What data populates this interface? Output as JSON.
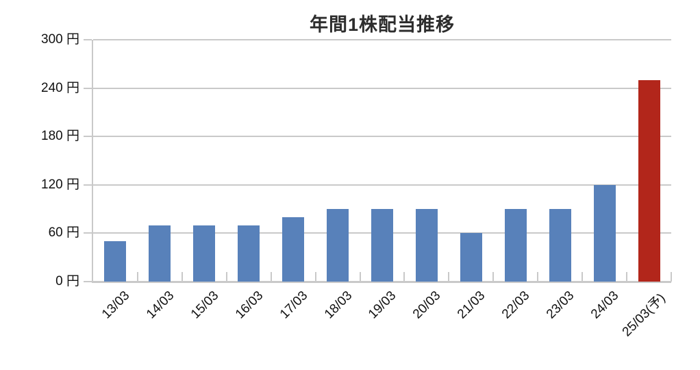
{
  "title": "年間1株配当推移",
  "chart_data": {
    "type": "bar",
    "title": "年間1株配当推移",
    "categories": [
      "13/03",
      "14/03",
      "15/03",
      "16/03",
      "17/03",
      "18/03",
      "19/03",
      "20/03",
      "21/03",
      "22/03",
      "23/03",
      "24/03",
      "25/03(予)"
    ],
    "values": [
      50,
      70,
      70,
      70,
      80,
      90,
      90,
      90,
      60,
      90,
      90,
      120,
      250
    ],
    "unit": "円",
    "ylim": [
      0,
      300
    ],
    "ytick_step": 60,
    "ytick_labels": [
      "0 円",
      "60 円",
      "120 円",
      "180 円",
      "240 円",
      "300 円"
    ],
    "grid": true,
    "legend": "none",
    "bar_color": "#5881BA",
    "forecast_color": "#B2261B",
    "forecast_index": 12,
    "axis_color": "#C9C9C9"
  }
}
